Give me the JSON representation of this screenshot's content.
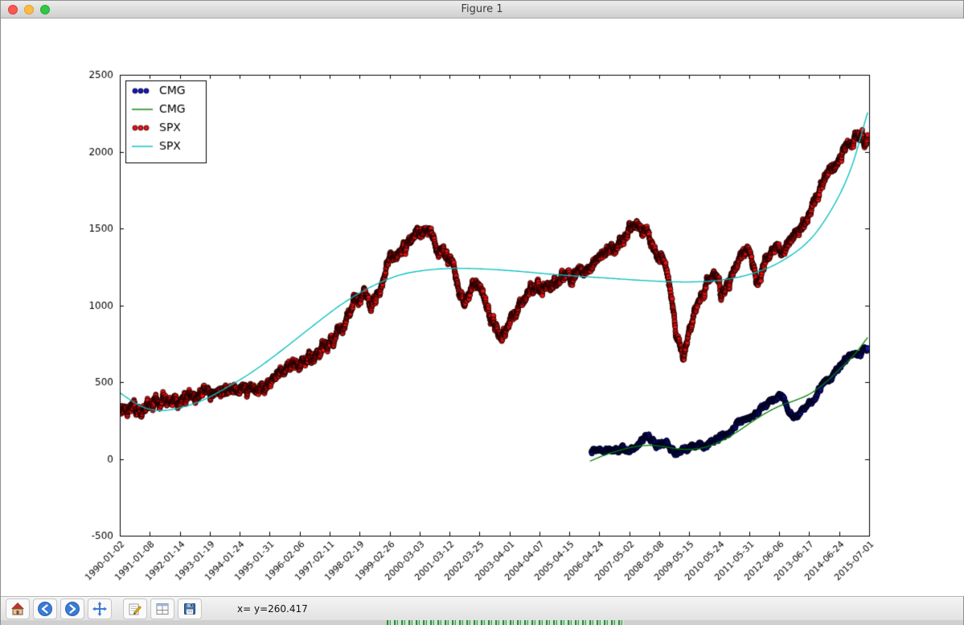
{
  "window": {
    "title": "Figure 1"
  },
  "toolbar": {
    "status_text": "x= y=260.417",
    "buttons": [
      {
        "name": "home"
      },
      {
        "name": "back"
      },
      {
        "name": "forward"
      },
      {
        "name": "pan"
      },
      {
        "name": "edit"
      },
      {
        "name": "subplots"
      },
      {
        "name": "save"
      }
    ]
  },
  "chart_data": {
    "type": "scatter",
    "title": "",
    "xlabel": "",
    "ylabel": "",
    "xlim_years": [
      1990.0,
      2015.5
    ],
    "ylim": [
      -500,
      2500
    ],
    "y_ticks": [
      -500,
      0,
      500,
      1000,
      1500,
      2000,
      2500
    ],
    "x_tick_labels": [
      "1990-01-02",
      "1991-01-08",
      "1992-01-14",
      "1993-01-19",
      "1994-01-24",
      "1995-01-31",
      "1996-02-06",
      "1997-02-11",
      "1998-02-19",
      "1999-02-26",
      "2000-03-03",
      "2001-03-12",
      "2002-03-25",
      "2003-04-01",
      "2004-04-07",
      "2005-04-15",
      "2006-04-24",
      "2007-05-02",
      "2008-05-08",
      "2009-05-15",
      "2010-05-24",
      "2011-05-31",
      "2012-06-06",
      "2013-06-17",
      "2014-06-24",
      "2015-07-01"
    ],
    "legend": {
      "position": "upper left",
      "entries": [
        "CMG",
        "CMG",
        "SPX",
        "SPX"
      ]
    },
    "series": [
      {
        "name": "CMG",
        "type": "scatter",
        "color": "#1414cc",
        "spread": 24,
        "points": [
          [
            2006.05,
            48
          ],
          [
            2006.35,
            58
          ],
          [
            2006.7,
            53
          ],
          [
            2007.0,
            60
          ],
          [
            2007.3,
            70
          ],
          [
            2007.6,
            95
          ],
          [
            2007.95,
            135
          ],
          [
            2008.1,
            125
          ],
          [
            2008.4,
            95
          ],
          [
            2008.7,
            70
          ],
          [
            2008.95,
            48
          ],
          [
            2009.2,
            58
          ],
          [
            2009.5,
            78
          ],
          [
            2009.9,
            90
          ],
          [
            2010.2,
            112
          ],
          [
            2010.5,
            145
          ],
          [
            2010.8,
            175
          ],
          [
            2011.1,
            240
          ],
          [
            2011.4,
            270
          ],
          [
            2011.7,
            300
          ],
          [
            2012.0,
            350
          ],
          [
            2012.3,
            395
          ],
          [
            2012.55,
            405
          ],
          [
            2012.75,
            330
          ],
          [
            2012.95,
            275
          ],
          [
            2013.15,
            310
          ],
          [
            2013.4,
            340
          ],
          [
            2013.7,
            420
          ],
          [
            2014.0,
            500
          ],
          [
            2014.3,
            545
          ],
          [
            2014.6,
            630
          ],
          [
            2014.9,
            665
          ],
          [
            2015.15,
            680
          ],
          [
            2015.35,
            700
          ],
          [
            2015.45,
            715
          ]
        ]
      },
      {
        "name": "CMG",
        "type": "line",
        "color": "#007f00",
        "points": [
          [
            2006.0,
            -15
          ],
          [
            2006.5,
            25
          ],
          [
            2007.0,
            55
          ],
          [
            2007.5,
            78
          ],
          [
            2008.0,
            88
          ],
          [
            2008.5,
            80
          ],
          [
            2009.0,
            65
          ],
          [
            2009.5,
            63
          ],
          [
            2010.0,
            80
          ],
          [
            2010.5,
            120
          ],
          [
            2011.0,
            175
          ],
          [
            2011.5,
            240
          ],
          [
            2012.0,
            300
          ],
          [
            2012.5,
            348
          ],
          [
            2013.0,
            382
          ],
          [
            2013.5,
            425
          ],
          [
            2014.0,
            495
          ],
          [
            2014.5,
            585
          ],
          [
            2015.0,
            680
          ],
          [
            2015.45,
            790
          ]
        ]
      },
      {
        "name": "SPX",
        "type": "scatter",
        "color": "#ee1111",
        "spread": 50,
        "points": [
          [
            1990.0,
            355
          ],
          [
            1990.4,
            345
          ],
          [
            1990.8,
            318
          ],
          [
            1991.1,
            360
          ],
          [
            1991.5,
            382
          ],
          [
            1992.0,
            400
          ],
          [
            1992.6,
            415
          ],
          [
            1993.2,
            440
          ],
          [
            1993.8,
            462
          ],
          [
            1994.3,
            455
          ],
          [
            1994.8,
            460
          ],
          [
            1995.3,
            520
          ],
          [
            1995.9,
            600
          ],
          [
            1996.4,
            650
          ],
          [
            1996.9,
            720
          ],
          [
            1997.4,
            820
          ],
          [
            1997.8,
            930
          ],
          [
            1998.2,
            1080
          ],
          [
            1998.6,
            1010
          ],
          [
            1998.8,
            1080
          ],
          [
            1999.2,
            1280
          ],
          [
            1999.6,
            1330
          ],
          [
            2000.0,
            1430
          ],
          [
            2000.25,
            1500
          ],
          [
            2000.6,
            1450
          ],
          [
            2001.0,
            1330
          ],
          [
            2001.4,
            1220
          ],
          [
            2001.72,
            1000
          ],
          [
            2002.0,
            1130
          ],
          [
            2002.35,
            1060
          ],
          [
            2002.8,
            820
          ],
          [
            2003.1,
            860
          ],
          [
            2003.6,
            990
          ],
          [
            2004.1,
            1130
          ],
          [
            2004.6,
            1110
          ],
          [
            2005.1,
            1190
          ],
          [
            2005.7,
            1220
          ],
          [
            2006.2,
            1290
          ],
          [
            2006.8,
            1360
          ],
          [
            2007.4,
            1510
          ],
          [
            2007.6,
            1545
          ],
          [
            2007.9,
            1480
          ],
          [
            2008.2,
            1350
          ],
          [
            2008.55,
            1280
          ],
          [
            2008.8,
            1000
          ],
          [
            2009.15,
            700
          ],
          [
            2009.5,
            930
          ],
          [
            2009.9,
            1090
          ],
          [
            2010.3,
            1170
          ],
          [
            2010.55,
            1070
          ],
          [
            2011.0,
            1270
          ],
          [
            2011.4,
            1330
          ],
          [
            2011.7,
            1160
          ],
          [
            2012.0,
            1300
          ],
          [
            2012.4,
            1390
          ],
          [
            2012.6,
            1340
          ],
          [
            2013.0,
            1460
          ],
          [
            2013.5,
            1630
          ],
          [
            2014.0,
            1840
          ],
          [
            2014.5,
            1950
          ],
          [
            2014.9,
            2060
          ],
          [
            2015.2,
            2090
          ],
          [
            2015.45,
            2110
          ]
        ]
      },
      {
        "name": "SPX",
        "type": "line",
        "color": "#00bfbf",
        "points": [
          [
            1990.0,
            430
          ],
          [
            1990.7,
            345
          ],
          [
            1991.3,
            315
          ],
          [
            1992.0,
            330
          ],
          [
            1992.8,
            380
          ],
          [
            1993.6,
            460
          ],
          [
            1994.5,
            565
          ],
          [
            1995.5,
            705
          ],
          [
            1996.5,
            855
          ],
          [
            1997.5,
            1000
          ],
          [
            1998.5,
            1115
          ],
          [
            1999.5,
            1195
          ],
          [
            2000.5,
            1230
          ],
          [
            2001.5,
            1240
          ],
          [
            2002.5,
            1235
          ],
          [
            2003.5,
            1222
          ],
          [
            2004.5,
            1205
          ],
          [
            2005.5,
            1190
          ],
          [
            2006.5,
            1178
          ],
          [
            2007.5,
            1165
          ],
          [
            2008.5,
            1155
          ],
          [
            2009.5,
            1152
          ],
          [
            2010.5,
            1165
          ],
          [
            2011.5,
            1205
          ],
          [
            2012.5,
            1285
          ],
          [
            2013.5,
            1430
          ],
          [
            2014.3,
            1650
          ],
          [
            2014.9,
            1900
          ],
          [
            2015.45,
            2255
          ]
        ]
      }
    ]
  }
}
